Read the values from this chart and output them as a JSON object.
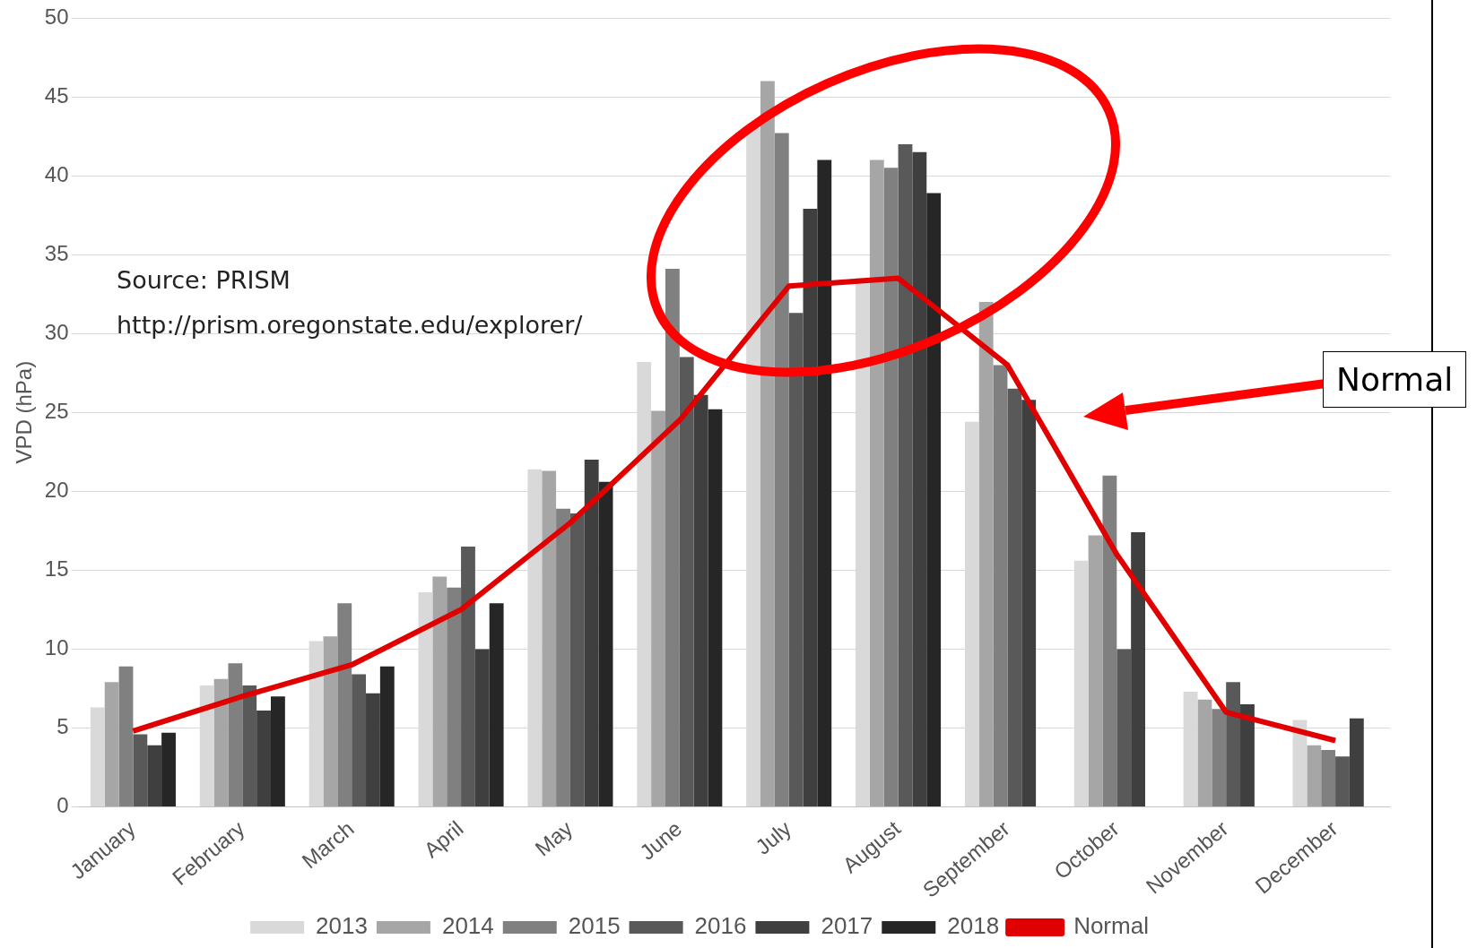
{
  "chart_data": {
    "type": "bar",
    "ylabel": "VPD (hPa)",
    "categories": [
      "January",
      "February",
      "March",
      "April",
      "May",
      "June",
      "July",
      "August",
      "September",
      "October",
      "November",
      "December"
    ],
    "series": [
      {
        "name": "2013",
        "color": "#d9d9d9",
        "values": [
          6.3,
          7.7,
          10.5,
          13.6,
          21.4,
          28.2,
          43,
          33.5,
          24.4,
          15.6,
          7.3,
          5.5
        ]
      },
      {
        "name": "2014",
        "color": "#a6a6a6",
        "values": [
          7.9,
          8.1,
          10.8,
          14.6,
          21.3,
          25.1,
          46,
          41,
          32,
          17.2,
          6.8,
          3.9
        ]
      },
      {
        "name": "2015",
        "color": "#808080",
        "values": [
          8.9,
          9.1,
          12.9,
          13.9,
          18.9,
          34.1,
          42.7,
          40.5,
          28,
          21,
          6.2,
          3.6
        ]
      },
      {
        "name": "2016",
        "color": "#595959",
        "values": [
          4.6,
          7.7,
          8.4,
          16.5,
          18.6,
          28.5,
          31.3,
          42,
          26.5,
          10,
          7.9,
          3.2
        ]
      },
      {
        "name": "2017",
        "color": "#3f3f3f",
        "values": [
          3.9,
          6.1,
          7.2,
          10,
          22,
          26.1,
          37.9,
          41.5,
          25.8,
          17.4,
          6.5,
          5.6
        ]
      },
      {
        "name": "2018",
        "color": "#262626",
        "values": [
          4.7,
          7,
          8.9,
          12.9,
          20.6,
          25.2,
          41,
          38.9,
          null,
          null,
          null,
          null
        ]
      },
      {
        "name": "Normal",
        "type": "line",
        "color": "#e00000",
        "values": [
          4.8,
          7,
          9,
          12.5,
          18,
          24.5,
          33,
          33.5,
          28,
          16,
          6,
          4.2
        ]
      }
    ],
    "ylim": [
      0,
      50
    ],
    "yticks": [
      0,
      5,
      10,
      15,
      20,
      25,
      30,
      35,
      40,
      45,
      50
    ],
    "grid": "y",
    "legend": "bottom",
    "marker": "none",
    "annotations": [
      "Source: PRISM",
      "http://prism.oregonstate.edu/explorer/",
      "Normal"
    ]
  }
}
